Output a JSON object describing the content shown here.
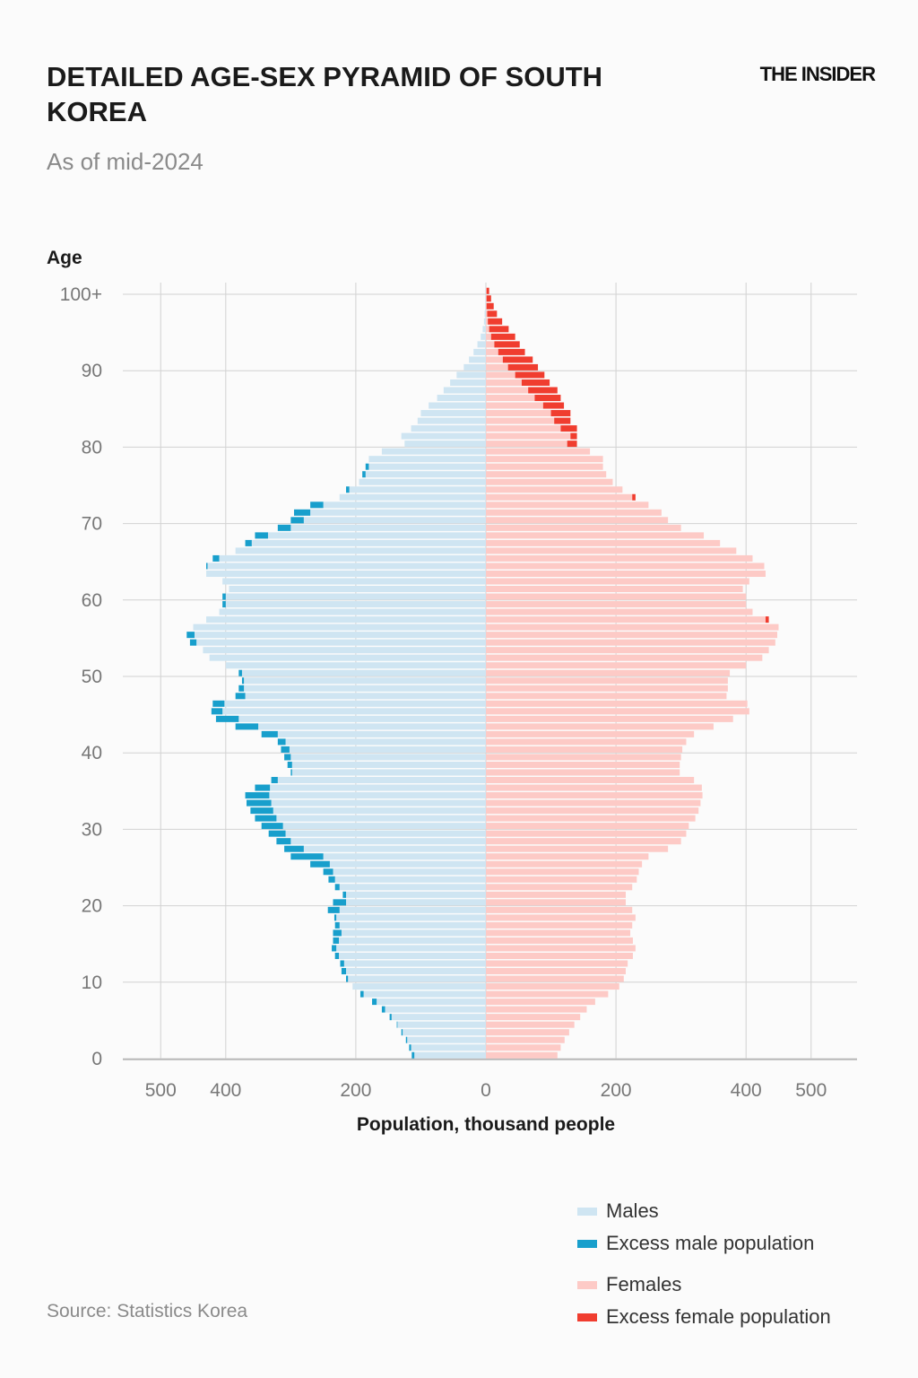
{
  "header": {
    "title": "DETAILED AGE-SEX PYRAMID OF SOUTH KOREA",
    "subtitle": "As of mid-2024",
    "brand": "THE INSIDER"
  },
  "footer": {
    "source": "Source: Statistics Korea"
  },
  "colors": {
    "males": "#cfe5f2",
    "excess_male": "#189fcc",
    "females": "#fdcac6",
    "excess_female": "#f03d2f",
    "grid": "#d2d2d2"
  },
  "chart_data": {
    "type": "bar",
    "orientation": "horizontal-pyramid",
    "title": "DETAILED AGE-SEX PYRAMID OF SOUTH KOREA",
    "subtitle": "As of mid-2024",
    "ylabel": "Age",
    "xlabel": "Population, thousand people",
    "y_ticks": [
      "0",
      "10",
      "20",
      "30",
      "40",
      "50",
      "60",
      "70",
      "80",
      "90",
      "100+"
    ],
    "x_ticks": [
      "500",
      "400",
      "200",
      "0",
      "200",
      "400",
      "500"
    ],
    "x_range": [
      -570,
      570
    ],
    "grid": true,
    "legend_position": "bottom-right",
    "legend": [
      "Males",
      "Excess male population",
      "Females",
      "Excess female population"
    ],
    "ages": [
      0,
      1,
      2,
      3,
      4,
      5,
      6,
      7,
      8,
      9,
      10,
      11,
      12,
      13,
      14,
      15,
      16,
      17,
      18,
      19,
      20,
      21,
      22,
      23,
      24,
      25,
      26,
      27,
      28,
      29,
      30,
      31,
      32,
      33,
      34,
      35,
      36,
      37,
      38,
      39,
      40,
      41,
      42,
      43,
      44,
      45,
      46,
      47,
      48,
      49,
      50,
      51,
      52,
      53,
      54,
      55,
      56,
      57,
      58,
      59,
      60,
      61,
      62,
      63,
      64,
      65,
      66,
      67,
      68,
      69,
      70,
      71,
      72,
      73,
      74,
      75,
      76,
      77,
      78,
      79,
      80,
      81,
      82,
      83,
      84,
      85,
      86,
      87,
      88,
      89,
      90,
      91,
      92,
      93,
      94,
      95,
      96,
      97,
      98,
      99,
      100
    ],
    "series": [
      {
        "name": "Males",
        "values": [
          114,
          118,
          123,
          130,
          137,
          148,
          160,
          175,
          193,
          205,
          215,
          222,
          224,
          232,
          237,
          235,
          235,
          232,
          233,
          243,
          235,
          220,
          232,
          242,
          250,
          270,
          300,
          310,
          322,
          334,
          345,
          355,
          362,
          368,
          370,
          355,
          330,
          300,
          305,
          310,
          315,
          320,
          345,
          385,
          415,
          422,
          420,
          385,
          380,
          375,
          380,
          400,
          425,
          435,
          455,
          460,
          450,
          430,
          410,
          405,
          405,
          395,
          405,
          430,
          430,
          420,
          385,
          370,
          355,
          320,
          300,
          295,
          270,
          225,
          215,
          195,
          190,
          185,
          180,
          160,
          125,
          130,
          115,
          105,
          100,
          88,
          75,
          65,
          55,
          45,
          34,
          26,
          19,
          13,
          8,
          5,
          3,
          2,
          1,
          1,
          1
        ]
      },
      {
        "name": "Females",
        "values": [
          110,
          115,
          121,
          128,
          136,
          145,
          155,
          168,
          188,
          205,
          212,
          215,
          218,
          226,
          230,
          226,
          222,
          225,
          230,
          225,
          215,
          215,
          225,
          232,
          235,
          240,
          250,
          280,
          300,
          308,
          312,
          322,
          327,
          330,
          333,
          332,
          320,
          298,
          298,
          300,
          302,
          308,
          320,
          350,
          380,
          405,
          402,
          370,
          372,
          372,
          375,
          400,
          425,
          435,
          445,
          448,
          450,
          435,
          410,
          400,
          400,
          395,
          405,
          430,
          428,
          410,
          385,
          360,
          335,
          300,
          280,
          270,
          250,
          230,
          210,
          195,
          185,
          180,
          180,
          160,
          140,
          140,
          140,
          130,
          130,
          120,
          115,
          110,
          98,
          90,
          80,
          72,
          60,
          52,
          45,
          35,
          25,
          17,
          12,
          8,
          5
        ]
      }
    ]
  }
}
